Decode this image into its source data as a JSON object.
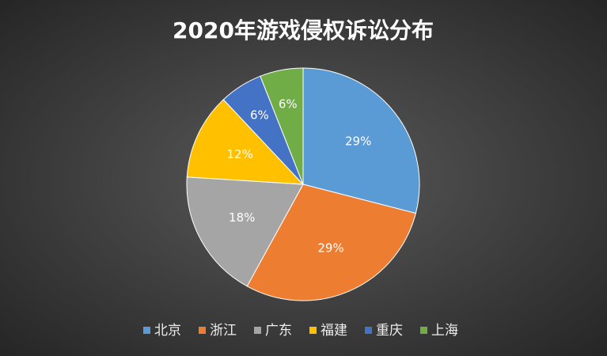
{
  "chart_data": {
    "type": "pie",
    "title": "2020年游戏侵权诉讼分布",
    "categories": [
      "北京",
      "浙江",
      "广东",
      "福建",
      "重庆",
      "上海"
    ],
    "values": [
      29,
      29,
      18,
      12,
      6,
      6
    ],
    "value_labels": [
      "29%",
      "29%",
      "18%",
      "12%",
      "6%",
      "6%"
    ],
    "colors": [
      "#5b9bd5",
      "#ed7d31",
      "#a5a5a5",
      "#ffc000",
      "#4472c4",
      "#70ad47"
    ],
    "legend": "bottom"
  }
}
